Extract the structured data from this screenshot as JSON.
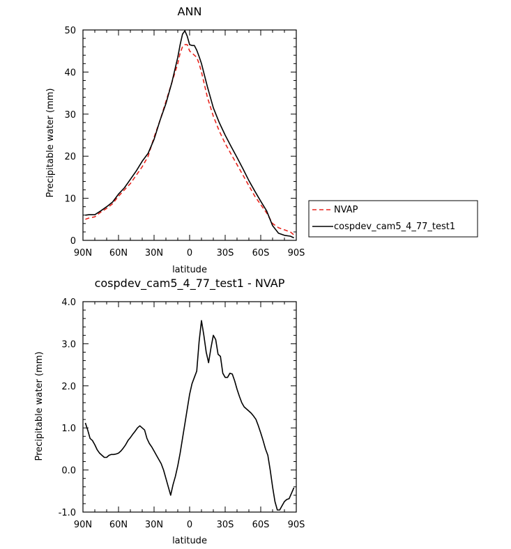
{
  "chart_data": [
    {
      "type": "line",
      "title": "ANN",
      "xlabel": "latitude",
      "ylabel": "Precipitable water (mm)",
      "xlim": [
        90,
        -90
      ],
      "ylim": [
        0,
        50
      ],
      "xticks": [
        {
          "value": 90,
          "label": "90N"
        },
        {
          "value": 60,
          "label": "60N"
        },
        {
          "value": 30,
          "label": "30N"
        },
        {
          "value": 0,
          "label": "0"
        },
        {
          "value": -30,
          "label": "30S"
        },
        {
          "value": -60,
          "label": "60S"
        },
        {
          "value": -90,
          "label": "90S"
        }
      ],
      "yticks": [
        {
          "value": 0,
          "label": "0"
        },
        {
          "value": 10,
          "label": "10"
        },
        {
          "value": 20,
          "label": "20"
        },
        {
          "value": 30,
          "label": "30"
        },
        {
          "value": 40,
          "label": "40"
        },
        {
          "value": 50,
          "label": "50"
        }
      ],
      "legend_position": "right",
      "series": [
        {
          "name": "NVAP",
          "color": "#e8251e",
          "dash": "dashed",
          "x": [
            88,
            85,
            80,
            75,
            70,
            65,
            60,
            55,
            50,
            45,
            40,
            35,
            30,
            25,
            20,
            15,
            10,
            8,
            6,
            4,
            2,
            0,
            -2,
            -4,
            -6,
            -8,
            -10,
            -15,
            -20,
            -25,
            -30,
            -35,
            -40,
            -45,
            -50,
            -55,
            -60,
            -65,
            -70,
            -75,
            -80,
            -85,
            -88
          ],
          "y": [
            5,
            5.3,
            5.6,
            6.7,
            7.6,
            8.7,
            10.5,
            12,
            13.5,
            15.5,
            17.5,
            20,
            24.5,
            28.5,
            33,
            37.5,
            42,
            44.5,
            46,
            46.5,
            46.5,
            45,
            44.5,
            44,
            43.5,
            42,
            40,
            34,
            29.5,
            26,
            23,
            20.5,
            18,
            15.5,
            13,
            10.5,
            8.5,
            6.5,
            4,
            3,
            2.5,
            2,
            1.3
          ]
        },
        {
          "name": "cospdev_cam5_4_77_test1",
          "color": "#000000",
          "dash": "solid",
          "x": [
            88,
            85,
            80,
            75,
            70,
            65,
            60,
            55,
            50,
            45,
            40,
            35,
            30,
            25,
            20,
            15,
            10,
            8,
            6,
            4,
            2,
            0,
            -2,
            -4,
            -6,
            -8,
            -10,
            -15,
            -20,
            -25,
            -30,
            -35,
            -40,
            -45,
            -50,
            -55,
            -60,
            -65,
            -70,
            -75,
            -80,
            -85,
            -88
          ],
          "y": [
            6,
            6.1,
            6.1,
            7,
            8,
            9.1,
            11,
            12.5,
            14.5,
            16.5,
            18.8,
            20.7,
            24,
            28.5,
            32.5,
            37.5,
            43.5,
            46.5,
            49,
            49.8,
            48.5,
            46.5,
            46.3,
            46.3,
            45.2,
            43.7,
            42,
            36.5,
            31.5,
            28,
            25,
            22.3,
            19.7,
            17,
            14.2,
            11.7,
            9.3,
            7,
            3.5,
            1.7,
            1.2,
            1,
            0.6
          ]
        }
      ]
    },
    {
      "type": "line",
      "title": "cospdev_cam5_4_77_test1 - NVAP",
      "xlabel": "latitude",
      "ylabel": "Precipitable water (mm)",
      "xlim": [
        90,
        -90
      ],
      "ylim": [
        -1,
        4
      ],
      "xticks": [
        {
          "value": 90,
          "label": "90N"
        },
        {
          "value": 60,
          "label": "60N"
        },
        {
          "value": 30,
          "label": "30N"
        },
        {
          "value": 0,
          "label": "0"
        },
        {
          "value": -30,
          "label": "30S"
        },
        {
          "value": -60,
          "label": "60S"
        },
        {
          "value": -90,
          "label": "90S"
        }
      ],
      "yticks": [
        {
          "value": -1,
          "label": "-1.0"
        },
        {
          "value": 0,
          "label": "0.0"
        },
        {
          "value": 1,
          "label": "1.0"
        },
        {
          "value": 2,
          "label": "2.0"
        },
        {
          "value": 3,
          "label": "3.0"
        },
        {
          "value": 4,
          "label": "4.0"
        }
      ],
      "series": [
        {
          "color": "#000000",
          "x": [
            88,
            86,
            84,
            82,
            80,
            78,
            76,
            74,
            72,
            70,
            68,
            66,
            64,
            62,
            60,
            58,
            56,
            54,
            52,
            50,
            48,
            46,
            44,
            42,
            40,
            38,
            36,
            34,
            32,
            30,
            28,
            26,
            24,
            22,
            20,
            18,
            16,
            14,
            12,
            10,
            8,
            6,
            4,
            2,
            0,
            -2,
            -4,
            -6,
            -8,
            -10,
            -12,
            -14,
            -16,
            -18,
            -20,
            -22,
            -24,
            -26,
            -28,
            -30,
            -32,
            -34,
            -36,
            -38,
            -40,
            -42,
            -44,
            -46,
            -48,
            -50,
            -52,
            -54,
            -56,
            -58,
            -60,
            -62,
            -64,
            -66,
            -68,
            -70,
            -72,
            -74,
            -76,
            -78,
            -80,
            -82,
            -84,
            -86,
            -88
          ],
          "y": [
            1.12,
            0.95,
            0.75,
            0.7,
            0.6,
            0.48,
            0.4,
            0.35,
            0.3,
            0.3,
            0.35,
            0.37,
            0.37,
            0.38,
            0.4,
            0.45,
            0.52,
            0.6,
            0.7,
            0.77,
            0.85,
            0.92,
            1.0,
            1.05,
            1.0,
            0.95,
            0.75,
            0.63,
            0.55,
            0.45,
            0.35,
            0.25,
            0.15,
            0.0,
            -0.2,
            -0.4,
            -0.6,
            -0.35,
            -0.15,
            0.1,
            0.4,
            0.75,
            1.1,
            1.45,
            1.8,
            2.05,
            2.2,
            2.35,
            3.05,
            3.55,
            3.2,
            2.8,
            2.55,
            2.9,
            3.2,
            3.1,
            2.75,
            2.7,
            2.3,
            2.2,
            2.2,
            2.3,
            2.28,
            2.12,
            1.92,
            1.75,
            1.6,
            1.5,
            1.45,
            1.4,
            1.35,
            1.28,
            1.2,
            1.05,
            0.88,
            0.7,
            0.5,
            0.35,
            0.0,
            -0.4,
            -0.75,
            -0.95,
            -0.95,
            -0.85,
            -0.75,
            -0.7,
            -0.68,
            -0.55,
            -0.42
          ]
        }
      ]
    }
  ]
}
